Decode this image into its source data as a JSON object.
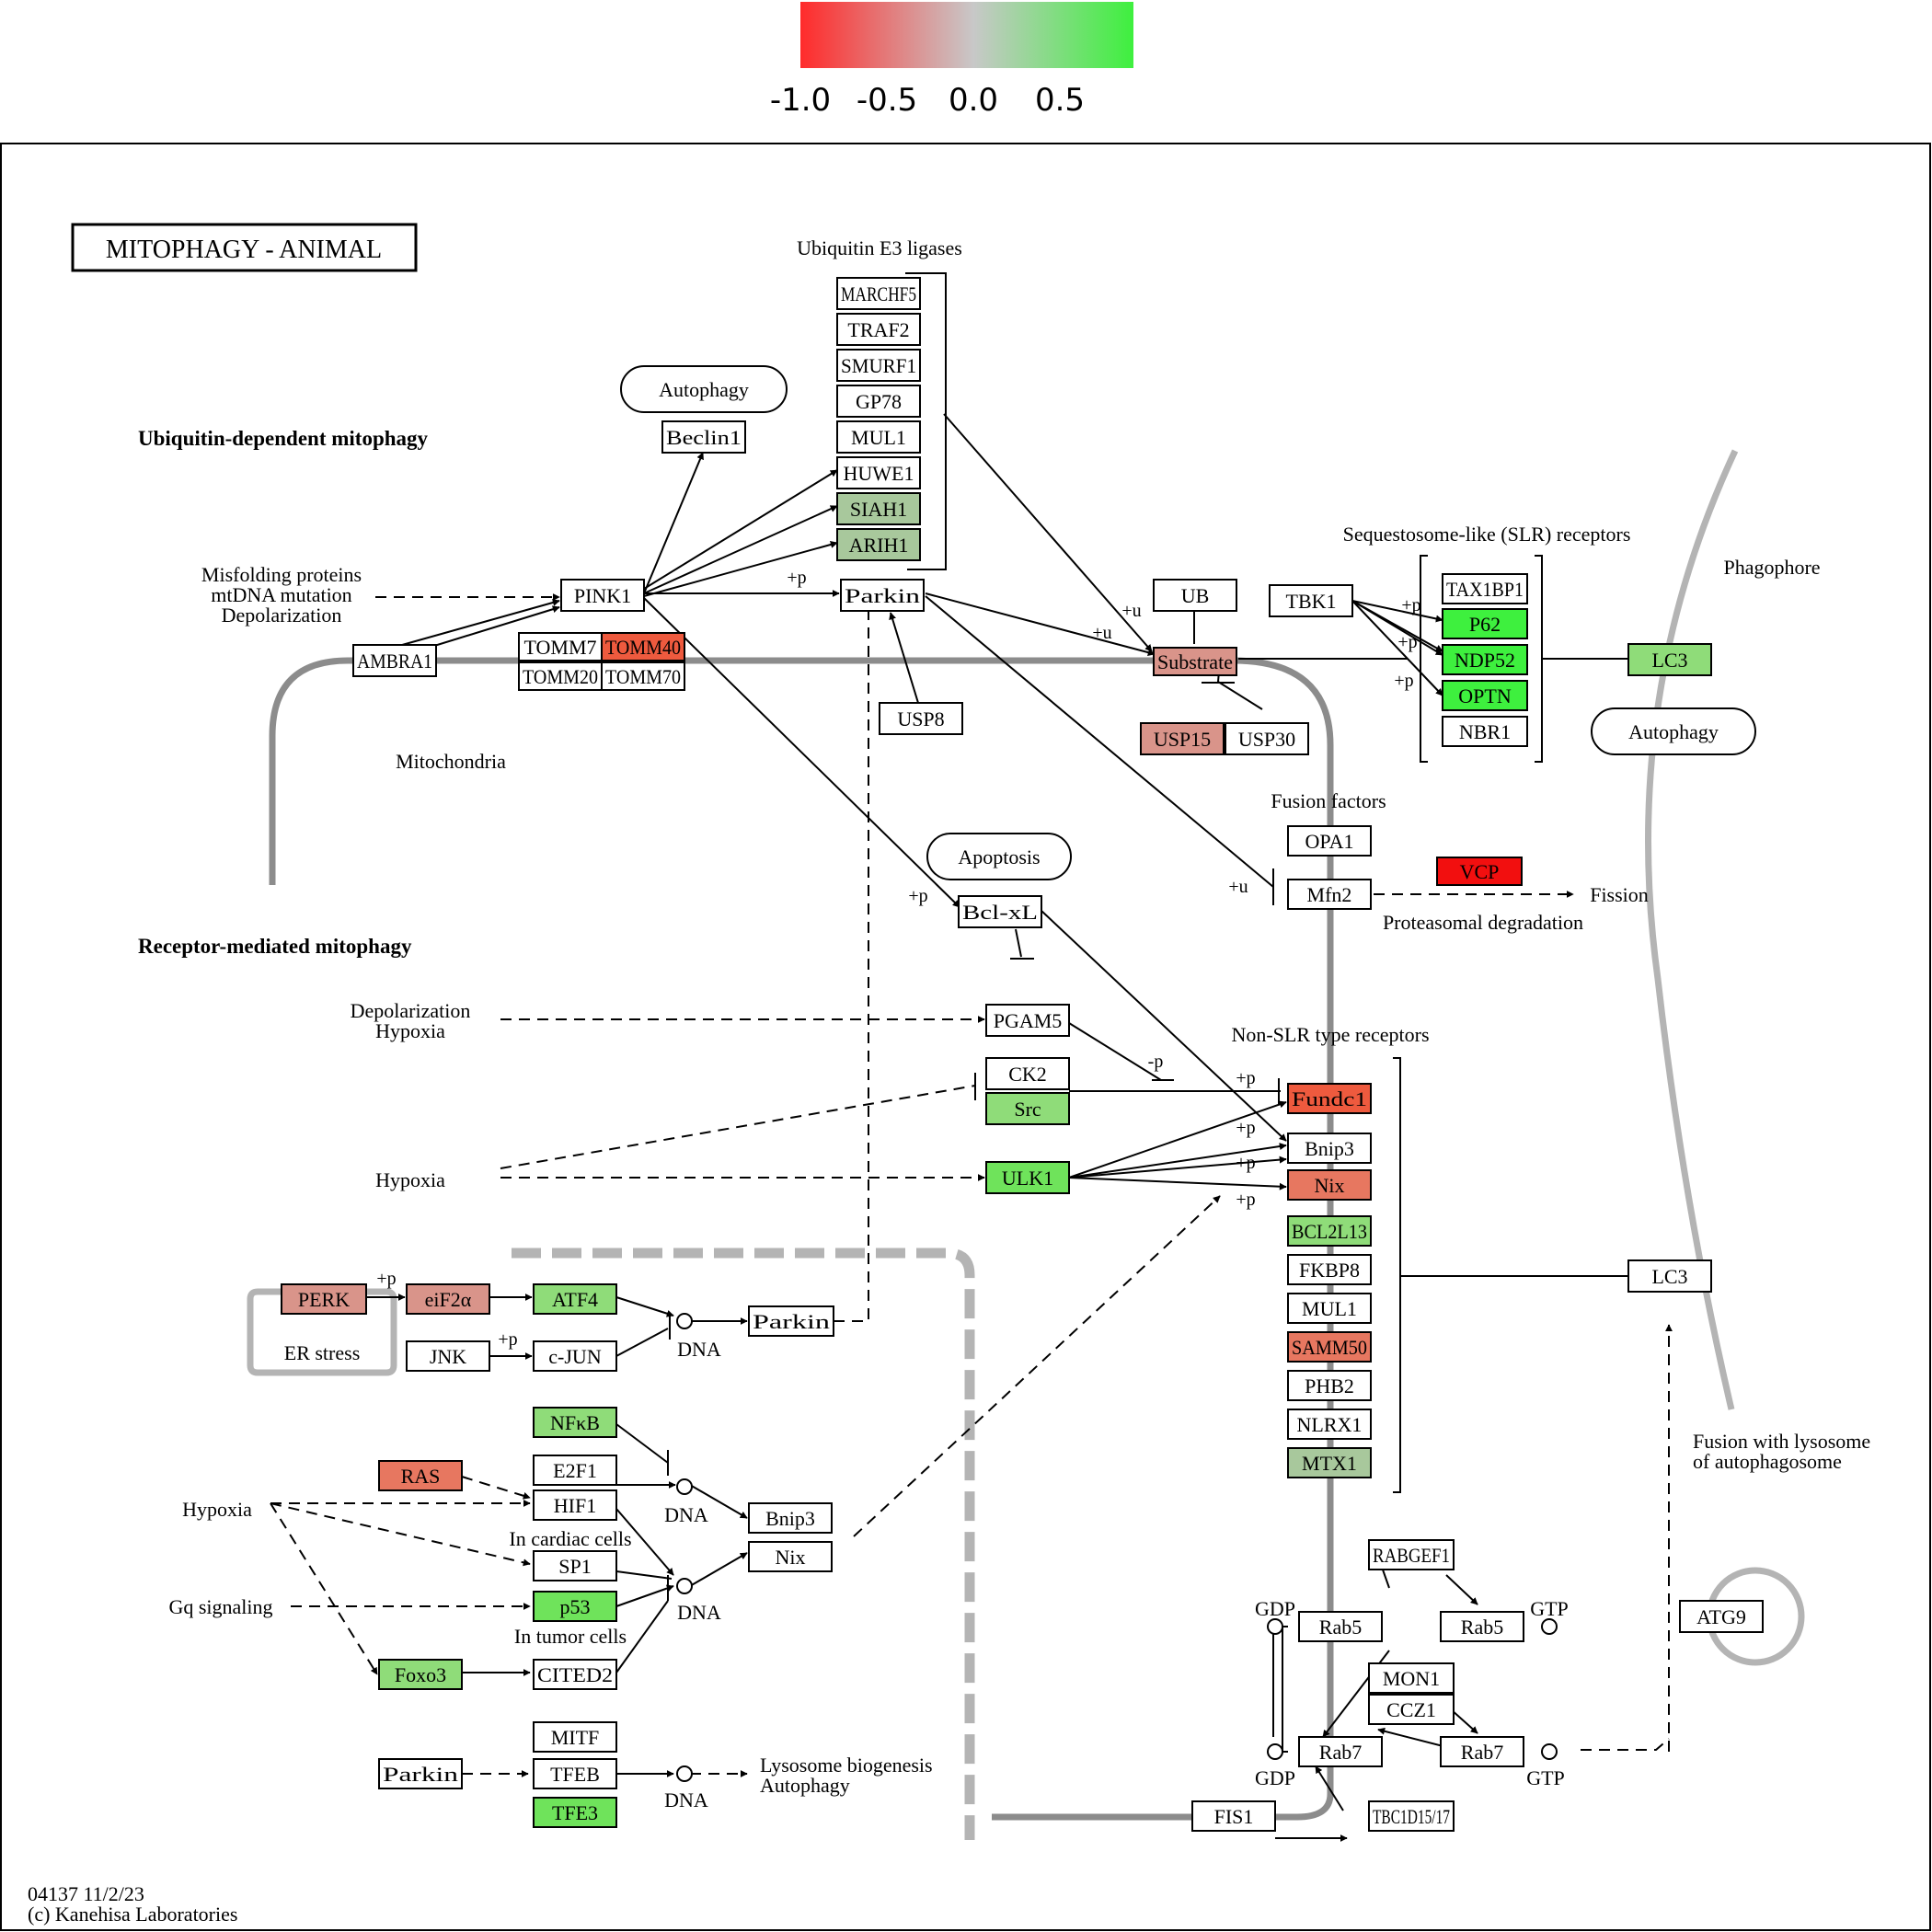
{
  "title": "MITOPHAGY - ANIMAL",
  "legend": {
    "ticks": [
      "-1.0",
      "-0.5",
      "0.0",
      "0.5"
    ],
    "min_color": "#ff2b2b",
    "mid_color": "#c8c8c8",
    "max_color": "#3ef03e"
  },
  "footer": {
    "code": "04137 11/2/23",
    "copyright": "(c) Kanehisa Laboratories"
  },
  "colors": {
    "red": "#f20f0f",
    "salmon": "#e77760",
    "orange_red": "#ee5a3e",
    "rose": "#d9948a",
    "pale_green": "#a8c89c",
    "mid_green": "#8fdc79",
    "green": "#6fe35b",
    "bright_green": "#3ef03e",
    "line": "#000000",
    "membrane": "#8c8c8c",
    "light_membrane": "#b4b4b4"
  },
  "labels": {
    "ubiq_title": "Ubiquitin-dependent mitophagy",
    "receptor_title": "Receptor-mediated mitophagy",
    "ub_e3": "Ubiquitin E3 ligases",
    "misfold1": "Misfolding proteins",
    "misfold2": "mtDNA mutation",
    "misfold3": "Depolarization",
    "mito": "Mitochondria",
    "slr": "Sequestosome-like (SLR) receptors",
    "phagophore": "Phagophore",
    "fusion_factors": "Fusion factors",
    "fission": "Fission",
    "proteasomal": "Proteasomal degradation",
    "nonslr": "Non-SLR type receptors",
    "depol": "Depolarization",
    "hypoxia_a": "Hypoxia",
    "hypoxia_b": "Hypoxia",
    "hypoxia_c": "Hypoxia",
    "gq": "Gq signaling",
    "er_stress": "ER stress",
    "dna1": "DNA",
    "dna2": "DNA",
    "dna3": "DNA",
    "dna4": "DNA",
    "cardiac": "In cardiac cells",
    "tumor": "In tumor cells",
    "lyso1": "Lysosome biogenesis",
    "lyso2": "Autophagy",
    "fusion_lyso1": "Fusion with lysosome",
    "fusion_lyso2": "of autophagosome",
    "gdp1": "GDP",
    "gtp1": "GTP",
    "gdp2": "GDP",
    "gtp2": "GTP",
    "pu": "+u",
    "pp": "+p",
    "mp": "-p"
  },
  "ovals": {
    "autophagy1": "Autophagy",
    "autophagy2": "Autophagy",
    "apoptosis": "Apoptosis"
  },
  "genes": {
    "march5": "MARCHF5",
    "traf2": "TRAF2",
    "smurf1": "SMURF1",
    "gp78": "GP78",
    "mul1a": "MUL1",
    "huwe1": "HUWE1",
    "siah1": "SIAH1",
    "arih1": "ARIH1",
    "beclin1": "Beclin1",
    "pink1": "PINK1",
    "parkin1": "Parkin",
    "ambra1": "AMBRA1",
    "tomm7": "TOMM7",
    "tomm40": "TOMM40",
    "tomm20": "TOMM20",
    "tomm70": "TOMM70",
    "usp8": "USP8",
    "ub": "UB",
    "substrate": "Substrate",
    "usp15": "USP15",
    "usp30": "USP30",
    "tbk1": "TBK1",
    "tax1bp1": "TAX1BP1",
    "p62": "P62",
    "ndp52": "NDP52",
    "optn": "OPTN",
    "nbr1": "NBR1",
    "lc3a": "LC3",
    "opa1": "OPA1",
    "mfn2": "Mfn2",
    "vcp": "VCP",
    "bclxl": "Bcl-xL",
    "pgam5": "PGAM5",
    "ck2": "CK2",
    "src": "Src",
    "ulk1": "ULK1",
    "fundc1": "Fundc1",
    "bnip3a": "Bnip3",
    "nixa": "Nix",
    "bcl2l13": "BCL2L13",
    "fkbp8": "FKBP8",
    "mul1b": "MUL1",
    "samm50": "SAMM50",
    "phb2": "PHB2",
    "nlrx1": "NLRX1",
    "mtx1": "MTX1",
    "lc3b": "LC3",
    "perk": "PERK",
    "eif2a": "eiF2α",
    "atf4": "ATF4",
    "parkin2": "Parkin",
    "jnk": "JNK",
    "cjun": "c-JUN",
    "nfkb": "NFκB",
    "ras": "RAS",
    "e2f1": "E2F1",
    "hif1": "HIF1",
    "bnip3b": "Bnip3",
    "nixb": "Nix",
    "sp1": "SP1",
    "p53": "p53",
    "foxo3": "Foxo3",
    "cited2": "CITED2",
    "mitf": "MITF",
    "tfeb": "TFEB",
    "tfe3": "TFE3",
    "parkin3": "Parkin",
    "rabgef1": "RABGEF1",
    "rab5a": "Rab5",
    "rab5b": "Rab5",
    "mon1": "MON1",
    "ccz1": "CCZ1",
    "rab7a": "Rab7",
    "rab7b": "Rab7",
    "fis1": "FIS1",
    "tbc1d15": "TBC1D15/17",
    "atg9": "ATG9"
  }
}
